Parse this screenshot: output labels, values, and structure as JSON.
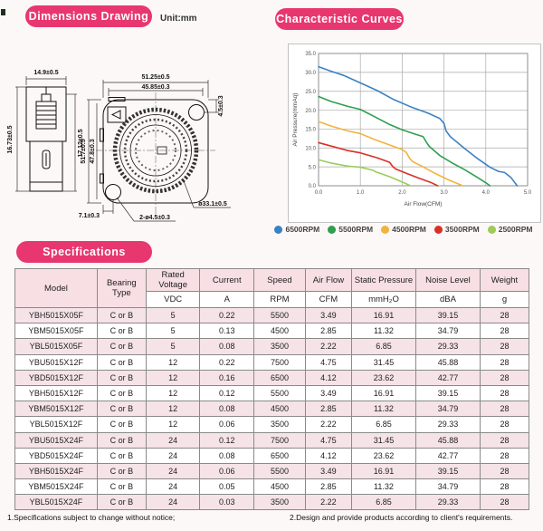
{
  "page": {
    "unit_label": "Unit:mm",
    "footer_note1": "1.Specifications subject to change without notice;",
    "footer_note2": "2.Design and provide products according to client's requirements."
  },
  "sections": {
    "dimensions_title": "Dimensions Drawing",
    "curves_title": "Characteristic Curves",
    "specs_title": "Specifications"
  },
  "colors": {
    "accent_pink": "#e8376f",
    "table_header_bg": "#f7dfe3",
    "row_alt_bg": "#f5e3e7"
  },
  "drawing": {
    "side_top": "14.9±0.5",
    "side_left": "16.73±0.5",
    "side_right": "17.12±0.5",
    "front_top_outer": "51.25±0.5",
    "front_top_inner": "45.85±0.3",
    "front_left_outer": "51.7±0.5",
    "front_left_inner": "47.8±0.3",
    "front_right": "4.5±0.3",
    "front_bottom_left": "7.1±0.3",
    "front_holes": "2-ø4.5±0.3",
    "front_circle": "ø33.1±0.5"
  },
  "chart_data": {
    "type": "line",
    "title": "",
    "xlabel": "Air Flow(CFM)",
    "ylabel": "Air Pressure(mmAq)",
    "xlim": [
      0,
      5
    ],
    "ylim": [
      0,
      35
    ],
    "xticks": [
      0,
      1,
      2,
      3,
      4,
      5
    ],
    "yticks": [
      0,
      5,
      10,
      15,
      20,
      25,
      30,
      35
    ],
    "grid": true,
    "legend_position": "bottom",
    "series": [
      {
        "name": "6500RPM",
        "color": "#3b82c4",
        "points": [
          [
            0,
            31.5
          ],
          [
            0.3,
            30.3
          ],
          [
            0.6,
            29.2
          ],
          [
            1.0,
            27.2
          ],
          [
            1.4,
            25.2
          ],
          [
            1.8,
            22.8
          ],
          [
            2.2,
            20.9
          ],
          [
            2.6,
            19.3
          ],
          [
            2.9,
            17.8
          ],
          [
            3.0,
            16.5
          ],
          [
            3.05,
            14.5
          ],
          [
            3.15,
            13.0
          ],
          [
            3.5,
            9.8
          ],
          [
            3.8,
            7.2
          ],
          [
            4.1,
            4.9
          ],
          [
            4.3,
            3.8
          ],
          [
            4.45,
            3.5
          ],
          [
            4.6,
            2.2
          ],
          [
            4.75,
            0
          ]
        ]
      },
      {
        "name": "5500RPM",
        "color": "#2f9e4f",
        "points": [
          [
            0,
            23.6
          ],
          [
            0.3,
            22.3
          ],
          [
            0.7,
            21.0
          ],
          [
            1.0,
            20.2
          ],
          [
            1.3,
            18.5
          ],
          [
            1.7,
            16.2
          ],
          [
            2.0,
            14.8
          ],
          [
            2.3,
            13.7
          ],
          [
            2.5,
            13.0
          ],
          [
            2.58,
            11.5
          ],
          [
            2.65,
            10.4
          ],
          [
            2.9,
            8.0
          ],
          [
            3.2,
            6.0
          ],
          [
            3.5,
            4.2
          ],
          [
            3.8,
            2.2
          ],
          [
            4.0,
            0.8
          ],
          [
            4.1,
            0
          ]
        ]
      },
      {
        "name": "4500RPM",
        "color": "#f2b33d",
        "points": [
          [
            0,
            17.0
          ],
          [
            0.3,
            15.8
          ],
          [
            0.7,
            14.5
          ],
          [
            1.0,
            13.8
          ],
          [
            1.3,
            12.4
          ],
          [
            1.7,
            10.8
          ],
          [
            2.0,
            9.6
          ],
          [
            2.1,
            8.8
          ],
          [
            2.18,
            7.2
          ],
          [
            2.25,
            6.4
          ],
          [
            2.5,
            5.0
          ],
          [
            2.8,
            3.2
          ],
          [
            3.1,
            1.6
          ],
          [
            3.45,
            0
          ]
        ]
      },
      {
        "name": "3500RPM",
        "color": "#d93025",
        "points": [
          [
            0,
            11.4
          ],
          [
            0.3,
            10.5
          ],
          [
            0.7,
            9.3
          ],
          [
            1.0,
            8.7
          ],
          [
            1.4,
            7.4
          ],
          [
            1.7,
            6.2
          ],
          [
            1.78,
            5.0
          ],
          [
            1.85,
            4.4
          ],
          [
            2.1,
            3.3
          ],
          [
            2.4,
            2.0
          ],
          [
            2.7,
            0.8
          ],
          [
            2.85,
            0
          ]
        ]
      },
      {
        "name": "2500RPM",
        "color": "#9ecb5a",
        "points": [
          [
            0,
            6.9
          ],
          [
            0.3,
            6.0
          ],
          [
            0.7,
            5.2
          ],
          [
            1.0,
            4.9
          ],
          [
            1.3,
            4.1
          ],
          [
            1.38,
            3.6
          ],
          [
            1.45,
            3.4
          ],
          [
            1.7,
            2.4
          ],
          [
            2.0,
            1.0
          ],
          [
            2.2,
            0
          ]
        ]
      }
    ]
  },
  "table": {
    "headers": [
      {
        "label": "Model",
        "unit": ""
      },
      {
        "label": "Bearing Type",
        "unit": ""
      },
      {
        "label": "Rated Voltage",
        "unit": "VDC"
      },
      {
        "label": "Current",
        "unit": "A"
      },
      {
        "label": "Speed",
        "unit": "RPM"
      },
      {
        "label": "Air Flow",
        "unit": "CFM"
      },
      {
        "label": "Static Pressure",
        "unit": "mmH₂O"
      },
      {
        "label": "Noise Level",
        "unit": "dBA"
      },
      {
        "label": "Weight",
        "unit": "g"
      }
    ],
    "rows": [
      [
        "YBH5015X05F",
        "C or B",
        "5",
        "0.22",
        "5500",
        "3.49",
        "16.91",
        "39.15",
        "28"
      ],
      [
        "YBM5015X05F",
        "C or B",
        "5",
        "0.13",
        "4500",
        "2.85",
        "11.32",
        "34.79",
        "28"
      ],
      [
        "YBL5015X05F",
        "C or B",
        "5",
        "0.08",
        "3500",
        "2.22",
        "6.85",
        "29.33",
        "28"
      ],
      [
        "YBU5015X12F",
        "C or B",
        "12",
        "0.22",
        "7500",
        "4.75",
        "31.45",
        "45.88",
        "28"
      ],
      [
        "YBD5015X12F",
        "C or B",
        "12",
        "0.16",
        "6500",
        "4.12",
        "23.62",
        "42.77",
        "28"
      ],
      [
        "YBH5015X12F",
        "C or B",
        "12",
        "0.12",
        "5500",
        "3.49",
        "16.91",
        "39.15",
        "28"
      ],
      [
        "YBM5015X12F",
        "C or B",
        "12",
        "0.08",
        "4500",
        "2.85",
        "11.32",
        "34.79",
        "28"
      ],
      [
        "YBL5015X12F",
        "C or B",
        "12",
        "0.06",
        "3500",
        "2.22",
        "6.85",
        "29.33",
        "28"
      ],
      [
        "YBU5015X24F",
        "C or B",
        "24",
        "0.12",
        "7500",
        "4.75",
        "31.45",
        "45.88",
        "28"
      ],
      [
        "YBD5015X24F",
        "C or B",
        "24",
        "0.08",
        "6500",
        "4.12",
        "23.62",
        "42.77",
        "28"
      ],
      [
        "YBH5015X24F",
        "C or B",
        "24",
        "0.06",
        "5500",
        "3.49",
        "16.91",
        "39.15",
        "28"
      ],
      [
        "YBM5015X24F",
        "C or B",
        "24",
        "0.05",
        "4500",
        "2.85",
        "11.32",
        "34.79",
        "28"
      ],
      [
        "YBL5015X24F",
        "C or B",
        "24",
        "0.03",
        "3500",
        "2.22",
        "6.85",
        "29.33",
        "28"
      ]
    ]
  }
}
